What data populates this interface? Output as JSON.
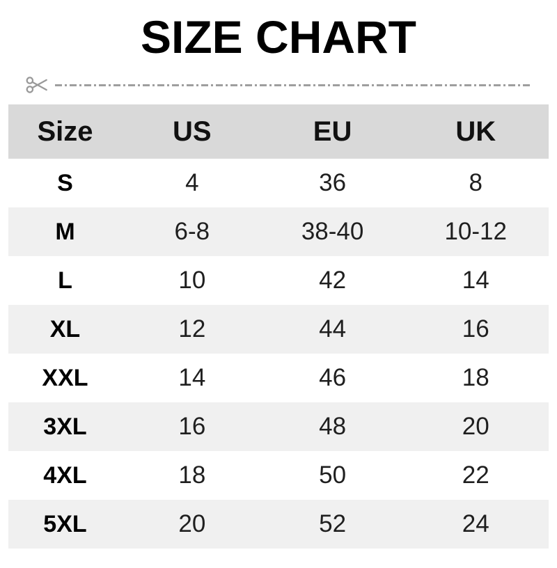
{
  "title": "SIZE CHART",
  "cut_line": {
    "icon": "scissors"
  },
  "colors": {
    "title_text": "#000000",
    "header_bg": "#d9d9d9",
    "header_text": "#111111",
    "row_bg": "#ffffff",
    "row_alt_bg": "#f0f0f0",
    "label_text": "#000000",
    "value_text": "#1f1f1f",
    "line_color": "#9e9e9e",
    "scissors_color": "#999999"
  },
  "chart_data": {
    "type": "table",
    "title": "SIZE CHART",
    "columns": [
      "Size",
      "US",
      "EU",
      "UK"
    ],
    "rows": [
      [
        "S",
        "4",
        "36",
        "8"
      ],
      [
        "M",
        "6-8",
        "38-40",
        "10-12"
      ],
      [
        "L",
        "10",
        "42",
        "14"
      ],
      [
        "XL",
        "12",
        "44",
        "16"
      ],
      [
        "XXL",
        "14",
        "46",
        "18"
      ],
      [
        "3XL",
        "16",
        "48",
        "20"
      ],
      [
        "4XL",
        "18",
        "50",
        "22"
      ],
      [
        "5XL",
        "20",
        "52",
        "24"
      ]
    ],
    "layout": {
      "header_background": "#d9d9d9",
      "alternating_rows": true,
      "first_data_row_background": "#ffffff",
      "grid": false
    }
  }
}
